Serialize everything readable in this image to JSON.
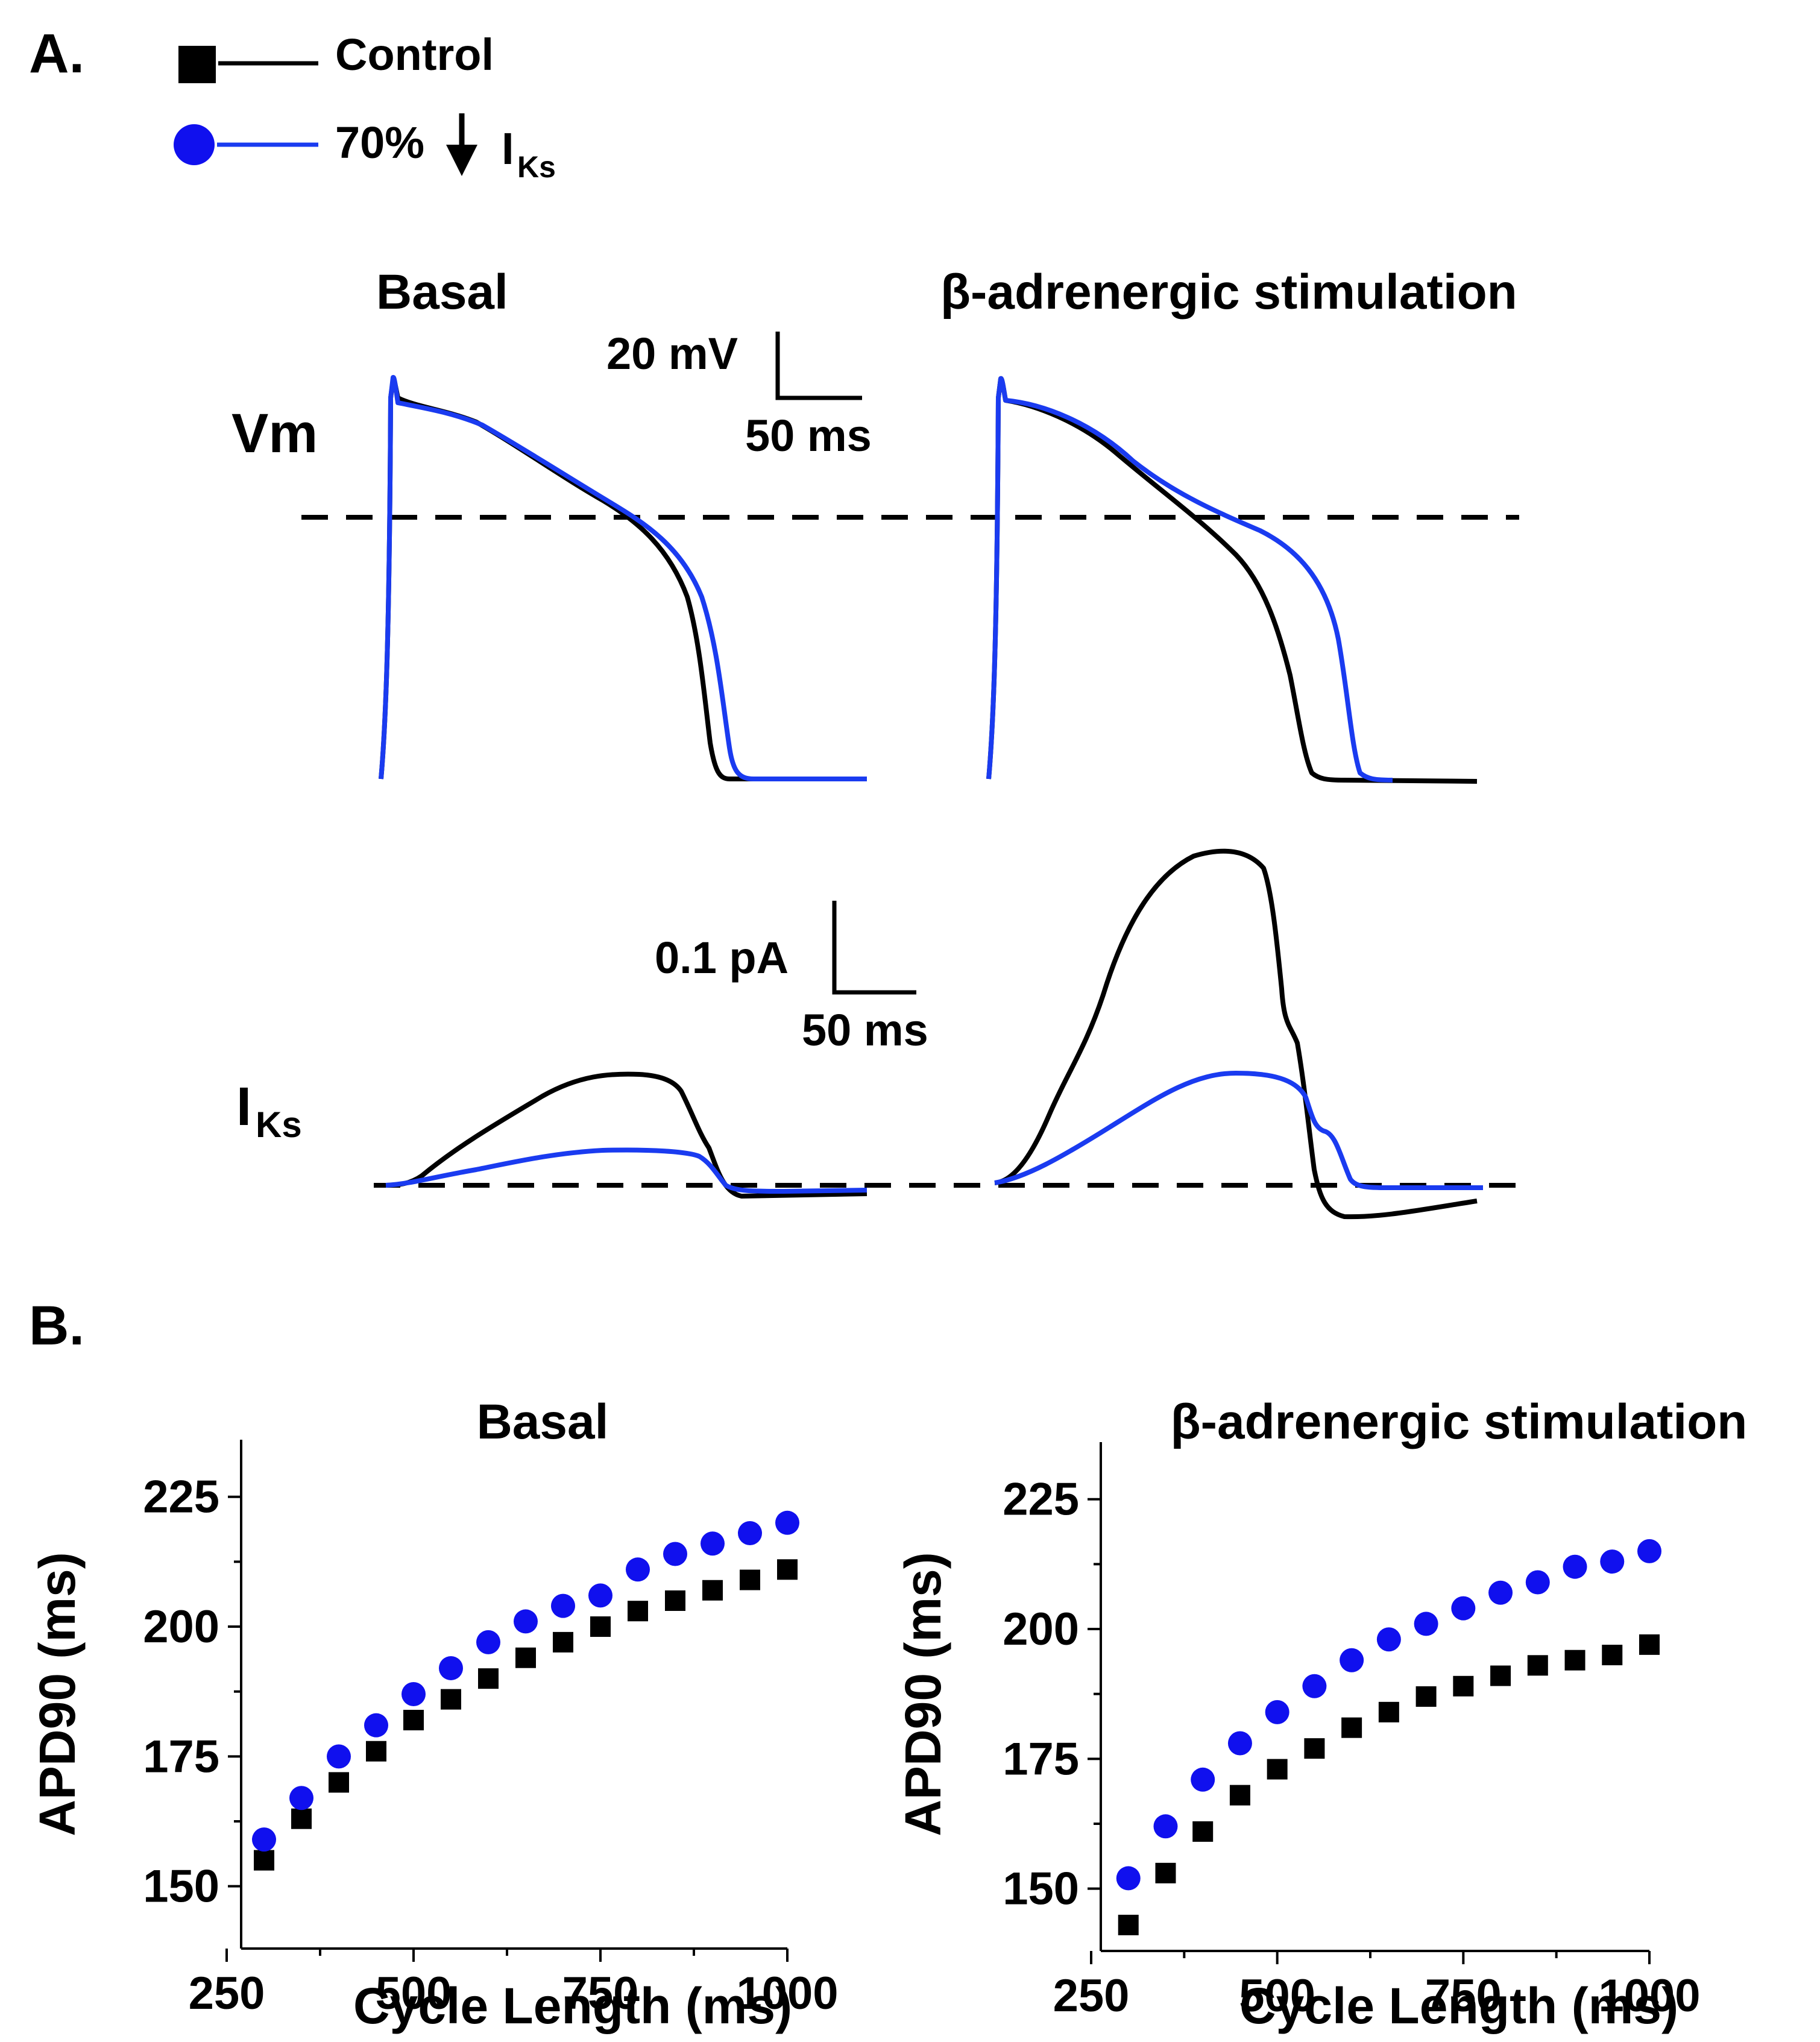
{
  "colors": {
    "control": "#000000",
    "treated": "#1a3bf0",
    "treated_marker": "#1010ee"
  },
  "panel_a": {
    "label": "A.",
    "legend": {
      "control_label": "Control",
      "treated_label": "70%",
      "treated_current": "I",
      "treated_current_sub": "Ks",
      "arrow_icon": "down-arrow-icon"
    },
    "col_basal": "Basal",
    "col_beta": "β-adrenergic stimulation",
    "row_vm": "Vm",
    "row_iks": "I",
    "row_iks_sub": "Ks",
    "vm_scale": {
      "y_label": "20 mV",
      "x_label": "50 ms"
    },
    "iks_scale": {
      "y_label": "0.1 pA",
      "x_label": "50 ms"
    }
  },
  "panel_b": {
    "label": "B."
  },
  "chart_data": [
    {
      "type": "scatter",
      "title": "Basal",
      "xlabel": "Cycle Length (ms)",
      "ylabel": "APD90 (ms)",
      "xlim": [
        250,
        1000
      ],
      "ylim": [
        138,
        236
      ],
      "xticks": [
        250,
        500,
        750,
        1000
      ],
      "yticks": [
        150,
        175,
        200,
        225
      ],
      "grid": false,
      "series": [
        {
          "name": "Control",
          "marker": "square",
          "x": [
            300,
            350,
            400,
            450,
            500,
            550,
            600,
            650,
            700,
            750,
            800,
            850,
            900,
            950,
            1000
          ],
          "y": [
            155,
            163,
            170,
            176,
            182,
            186,
            190,
            194,
            197,
            200,
            203,
            205,
            207,
            209,
            211
          ]
        },
        {
          "name": "70% IKs block",
          "marker": "circle",
          "x": [
            300,
            350,
            400,
            450,
            500,
            550,
            600,
            650,
            700,
            750,
            800,
            850,
            900,
            950,
            1000
          ],
          "y": [
            159,
            167,
            175,
            181,
            187,
            192,
            197,
            201,
            204,
            206,
            211,
            214,
            216,
            218,
            220
          ]
        }
      ]
    },
    {
      "type": "scatter",
      "title": "β-adrenergic stimulation",
      "xlabel": "Cycle Length (ms)",
      "ylabel": "APD90 (ms)",
      "xlim": [
        250,
        1000
      ],
      "ylim": [
        138,
        236
      ],
      "xticks": [
        250,
        500,
        750,
        1000
      ],
      "yticks": [
        150,
        175,
        200,
        225
      ],
      "grid": false,
      "series": [
        {
          "name": "Control",
          "marker": "square",
          "x": [
            300,
            350,
            400,
            450,
            500,
            550,
            600,
            650,
            700,
            750,
            800,
            850,
            900,
            950,
            1000
          ],
          "y": [
            143,
            153,
            161,
            168,
            173,
            177,
            181,
            184,
            187,
            189,
            191,
            193,
            194,
            195,
            197
          ]
        },
        {
          "name": "70% IKs block",
          "marker": "circle",
          "x": [
            300,
            350,
            400,
            450,
            500,
            550,
            600,
            650,
            700,
            750,
            800,
            850,
            900,
            950,
            1000
          ],
          "y": [
            152,
            162,
            171,
            178,
            184,
            189,
            194,
            198,
            201,
            204,
            207,
            209,
            212,
            213,
            215
          ]
        }
      ]
    }
  ]
}
